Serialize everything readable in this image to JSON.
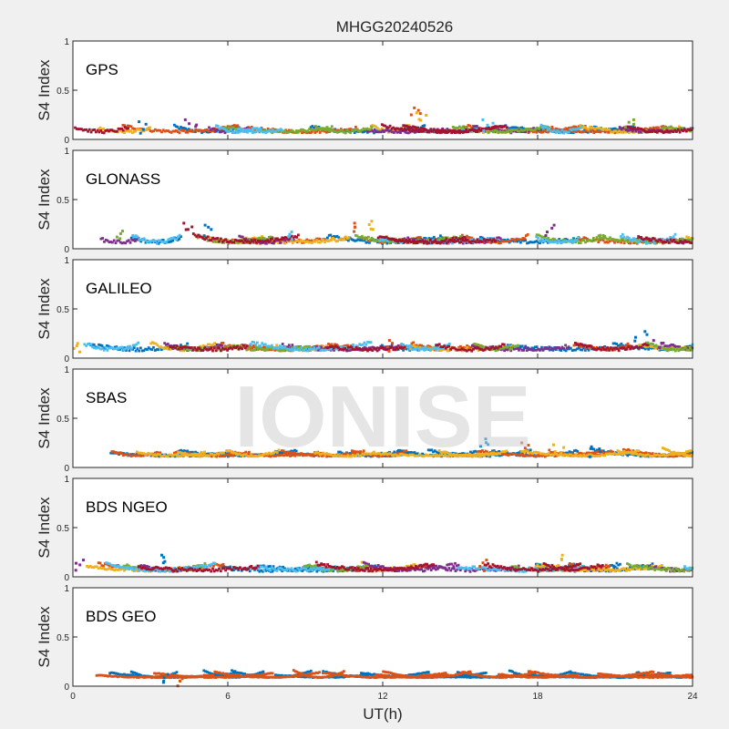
{
  "figure": {
    "title": "MHGG20240526",
    "xlabel": "UT(h)",
    "watermark": "IONISE"
  },
  "chart_data": {
    "type": "scatter",
    "title": "MHGG20240526",
    "xlabel": "UT(h)",
    "xlim": [
      0,
      24
    ],
    "xticks": [
      "0",
      "6",
      "12",
      "18",
      "24"
    ],
    "ylim": [
      0,
      1
    ],
    "yticks": [
      "0",
      "0.5",
      "1"
    ],
    "grid": false,
    "panels": [
      {
        "label": "GPS",
        "ylabel": "S4 Index",
        "baseline": 0.08,
        "spread": 0.03,
        "colors": [
          "#0072BD",
          "#D95319",
          "#EDB120",
          "#7E2F8E",
          "#77AC30",
          "#4DBEEE",
          "#A2142F"
        ],
        "highlights": [
          [
            2.7,
            0.18
          ],
          [
            13.3,
            0.32
          ],
          [
            13.5,
            0.27
          ],
          [
            4.6,
            0.2
          ],
          [
            21.6,
            0.2
          ],
          [
            16.1,
            0.2
          ]
        ]
      },
      {
        "label": "GLONASS",
        "ylabel": "S4 Index",
        "baseline": 0.07,
        "spread": 0.035,
        "colors": [
          "#0072BD",
          "#D95319",
          "#EDB120",
          "#7E2F8E",
          "#77AC30",
          "#4DBEEE",
          "#A2142F"
        ],
        "highlights": [
          [
            5.2,
            0.24
          ],
          [
            10.9,
            0.26
          ],
          [
            11.5,
            0.28
          ],
          [
            18.4,
            0.24
          ],
          [
            1.7,
            0.18
          ],
          [
            8.5,
            0.17
          ],
          [
            4.4,
            0.26
          ]
        ]
      },
      {
        "label": "GALILEO",
        "ylabel": "S4 Index",
        "baseline": 0.09,
        "spread": 0.035,
        "colors": [
          "#0072BD",
          "#D95319",
          "#EDB120",
          "#7E2F8E",
          "#77AC30",
          "#4DBEEE",
          "#A2142F"
        ],
        "highlights": [
          [
            22.0,
            0.27
          ],
          [
            12.4,
            0.18
          ],
          [
            0.2,
            0.15
          ],
          [
            22.7,
            0.18
          ]
        ]
      },
      {
        "label": "SBAS",
        "ylabel": "S4 Index",
        "baseline": 0.12,
        "spread": 0.02,
        "colors": [
          "#0072BD",
          "#D95319",
          "#EDB120"
        ],
        "highlights": [
          [
            16.0,
            0.29
          ],
          [
            17.5,
            0.25
          ],
          [
            18.8,
            0.23
          ],
          [
            20.2,
            0.21
          ]
        ]
      },
      {
        "label": "BDS NGEO",
        "ylabel": "S4 Index",
        "baseline": 0.07,
        "spread": 0.035,
        "colors": [
          "#0072BD",
          "#D95319",
          "#EDB120",
          "#7E2F8E",
          "#77AC30",
          "#4DBEEE",
          "#A2142F"
        ],
        "highlights": [
          [
            3.4,
            0.22
          ],
          [
            15.8,
            0.17
          ],
          [
            18.9,
            0.22
          ],
          [
            0.3,
            0.17
          ]
        ]
      },
      {
        "label": "BDS GEO",
        "ylabel": "S4 Index",
        "baseline": 0.09,
        "spread": 0.008,
        "colors": [
          "#0072BD",
          "#D95319"
        ],
        "highlights": [
          [
            3.5,
            0.12
          ],
          [
            4.0,
            0.11
          ]
        ]
      }
    ]
  }
}
